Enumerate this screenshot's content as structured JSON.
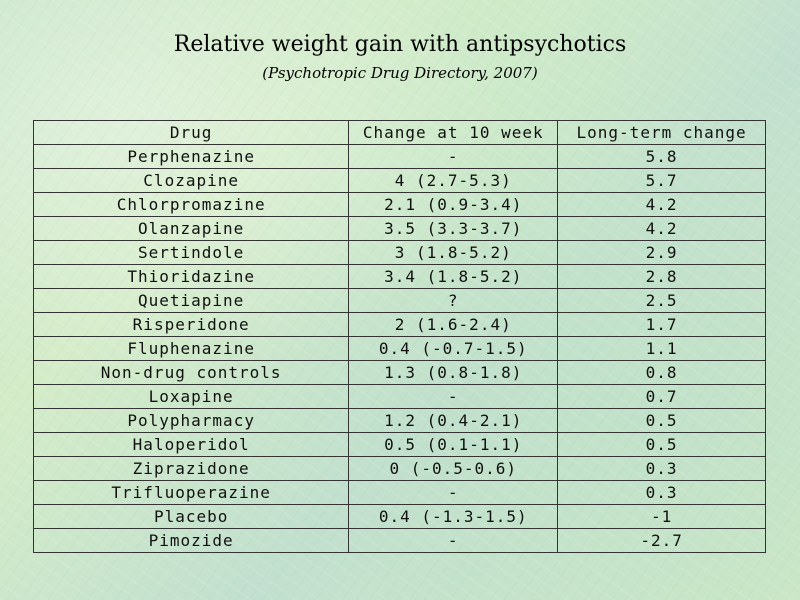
{
  "slide": {
    "title": "Relative weight gain with antipsychotics",
    "subtitle": "(Psychotropic Drug Directory, 2007)"
  },
  "table": {
    "headers": [
      "Drug",
      "Change at 10 week",
      "Long-term change"
    ],
    "rows": [
      [
        "Perphenazine",
        "-",
        "5.8"
      ],
      [
        "Clozapine",
        "4 (2.7-5.3)",
        "5.7"
      ],
      [
        "Chlorpromazine",
        "2.1 (0.9-3.4)",
        "4.2"
      ],
      [
        "Olanzapine",
        "3.5 (3.3-3.7)",
        "4.2"
      ],
      [
        "Sertindole",
        "3 (1.8-5.2)",
        "2.9"
      ],
      [
        "Thioridazine",
        "3.4 (1.8-5.2)",
        "2.8"
      ],
      [
        "Quetiapine",
        "?",
        "2.5"
      ],
      [
        "Risperidone",
        "2 (1.6-2.4)",
        "1.7"
      ],
      [
        "Fluphenazine",
        "0.4 (-0.7-1.5)",
        "1.1"
      ],
      [
        "Non-drug controls",
        "1.3 (0.8-1.8)",
        "0.8"
      ],
      [
        "Loxapine",
        "-",
        "0.7"
      ],
      [
        "Polypharmacy",
        "1.2 (0.4-2.1)",
        "0.5"
      ],
      [
        "Haloperidol",
        "0.5 (0.1-1.1)",
        "0.5"
      ],
      [
        "Ziprazidone",
        "0 (-0.5-0.6)",
        "0.3"
      ],
      [
        "Trifluoperazine",
        "-",
        "0.3"
      ],
      [
        "Placebo",
        "0.4 (-1.3-1.5)",
        "-1"
      ],
      [
        "Pimozide",
        "-",
        "-2.7"
      ]
    ]
  }
}
